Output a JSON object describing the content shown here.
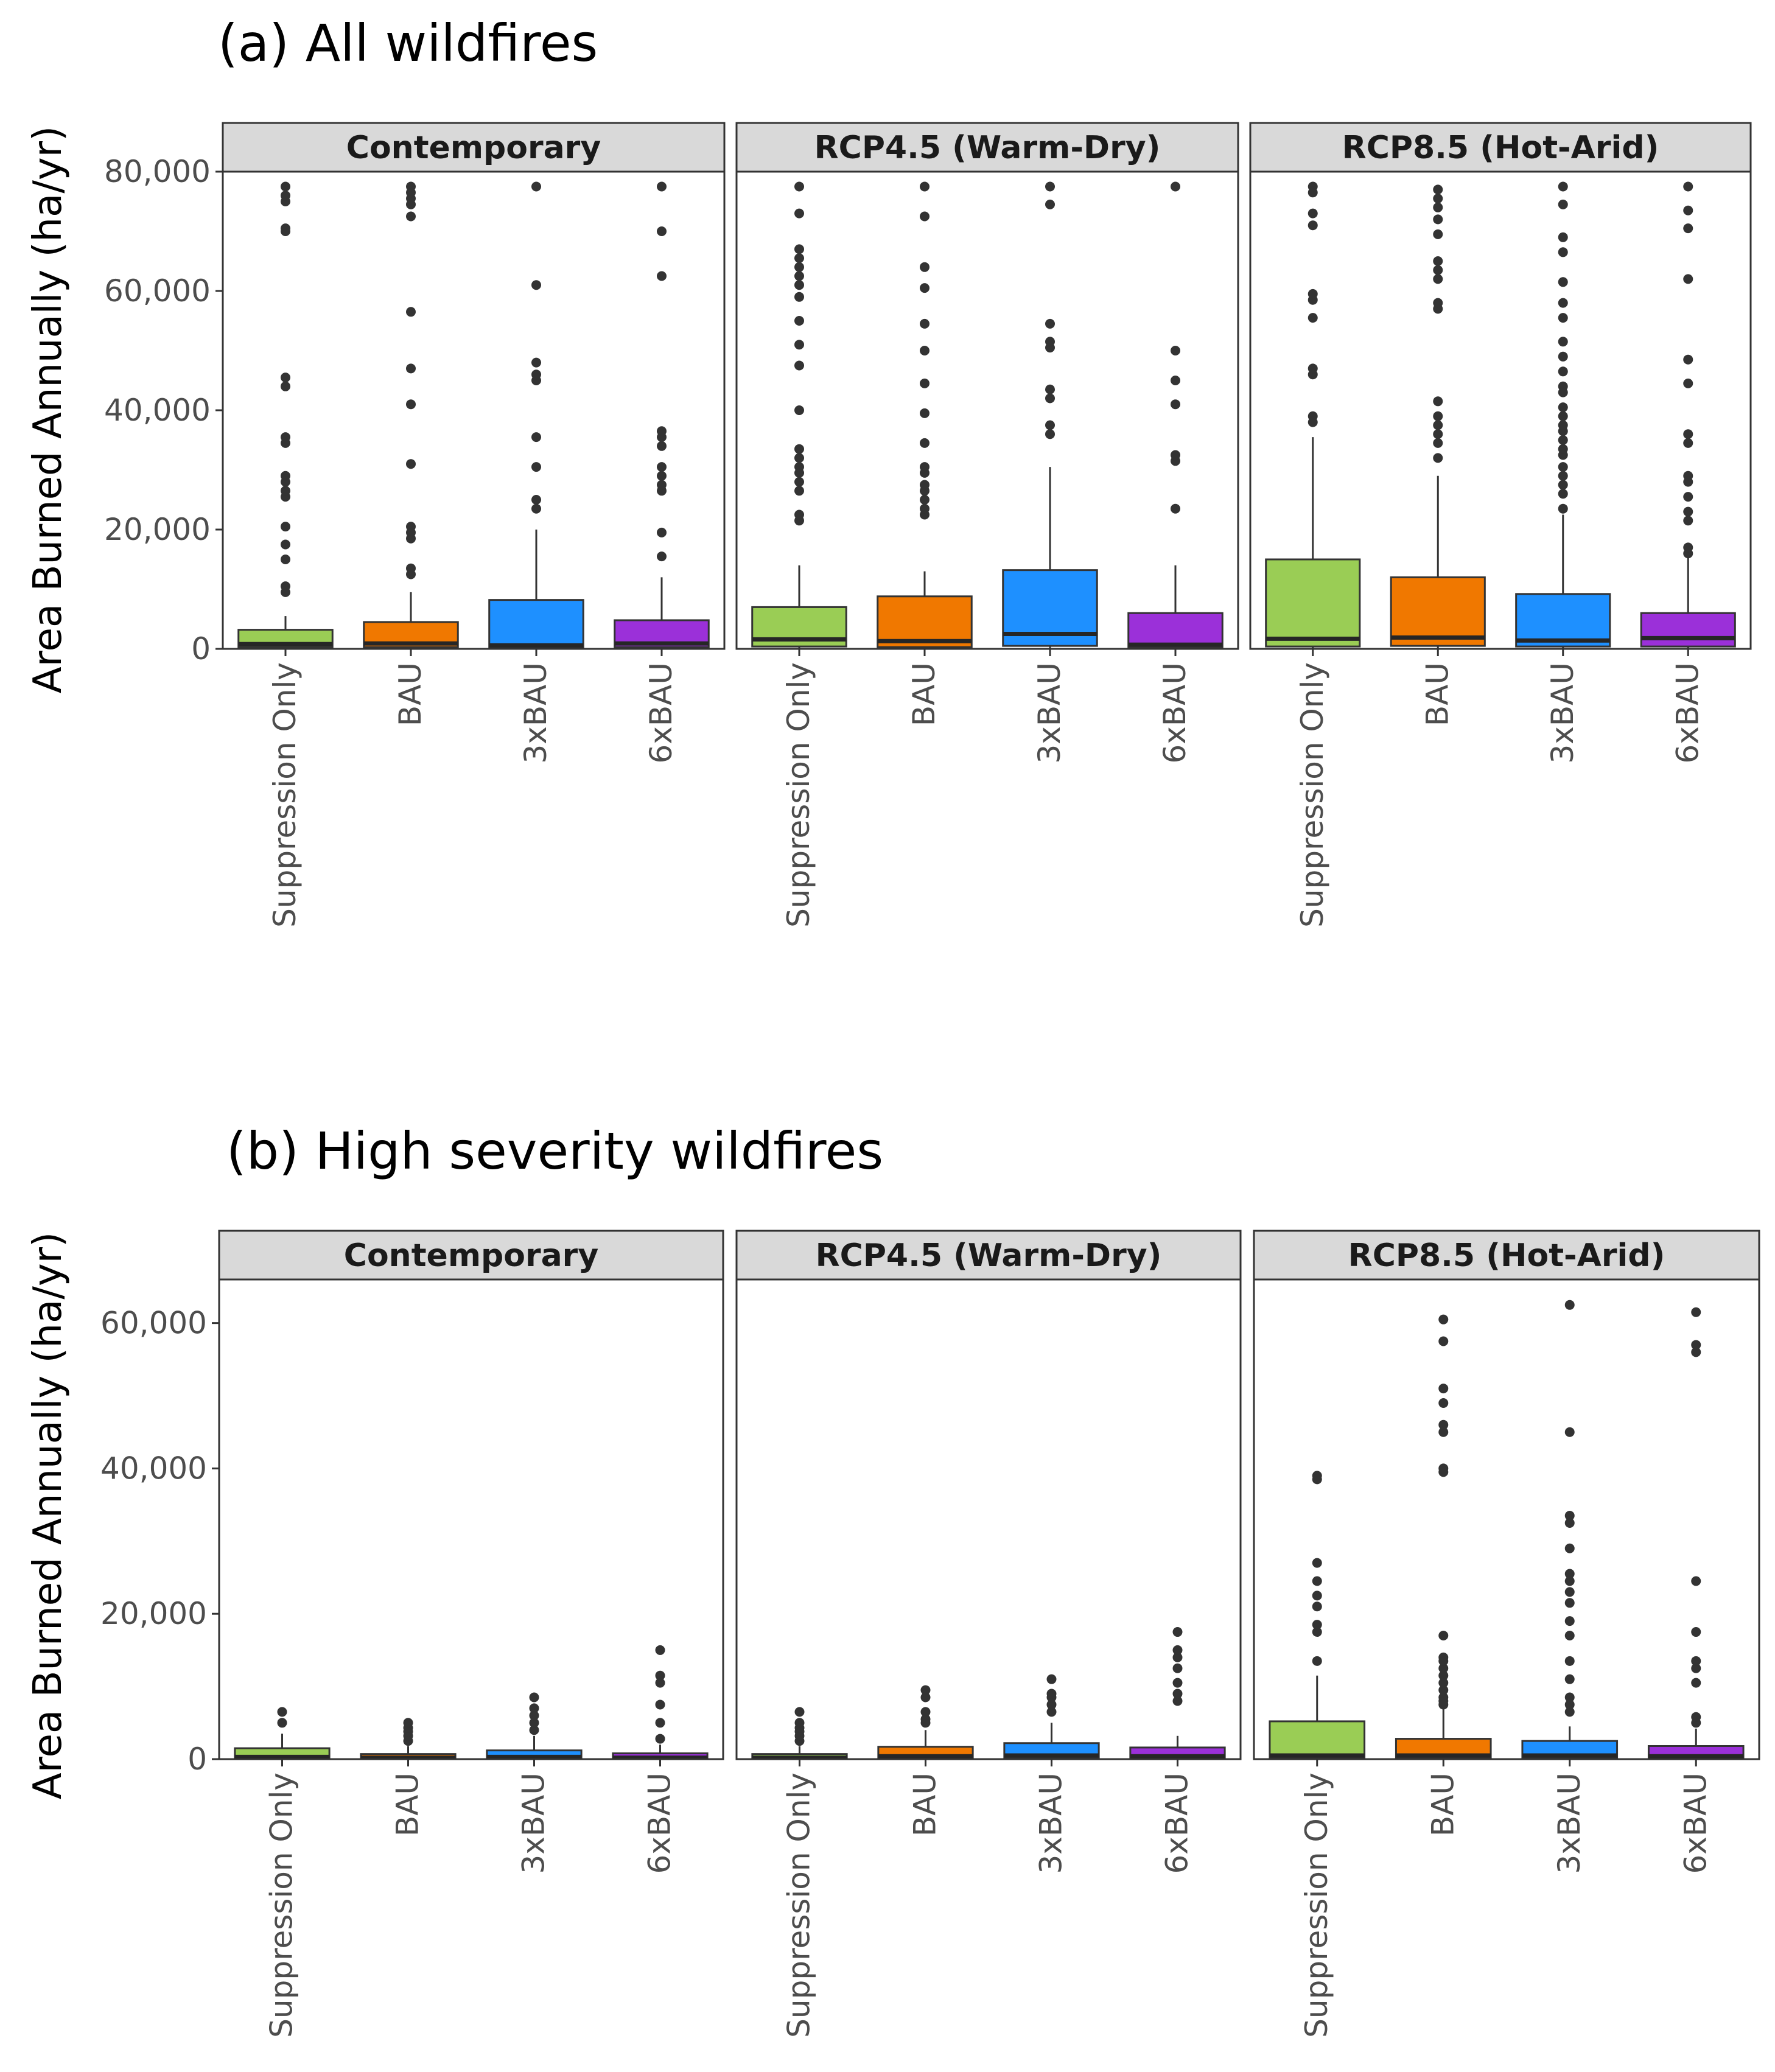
{
  "chart_data": [
    {
      "type": "box",
      "title": "(a) All wildfires",
      "ylabel": "Area Burned Annually (ha/yr)",
      "xlabel": "",
      "ylim": [
        0,
        80000
      ],
      "yticks": [
        0,
        20000,
        40000,
        60000,
        80000
      ],
      "ytick_labels": [
        "0",
        "20,000",
        "40,000",
        "60,000",
        "80,000"
      ],
      "grid": false,
      "categories": [
        "Suppression Only",
        "BAU",
        "3xBAU",
        "6xBAU"
      ],
      "colors": [
        "#9ACD55",
        "#F07800",
        "#1E90FF",
        "#9B30D9"
      ],
      "facets": [
        {
          "label": "Contemporary",
          "boxes": [
            {
              "q1": 300,
              "median": 800,
              "q3": 3200,
              "whisker_low": 0,
              "whisker_high": 5500,
              "outliers": [
                9500,
                10500,
                15000,
                17500,
                20500,
                25500,
                26500,
                28000,
                29000,
                34500,
                35500,
                44000,
                45500,
                70000,
                70500,
                75000,
                76000,
                77500
              ]
            },
            {
              "q1": 300,
              "median": 900,
              "q3": 4500,
              "whisker_low": 0,
              "whisker_high": 9500,
              "outliers": [
                12500,
                13500,
                18500,
                19500,
                20500,
                31000,
                41000,
                47000,
                56500,
                72500,
                74500,
                75500,
                76500,
                77500
              ]
            },
            {
              "q1": 200,
              "median": 600,
              "q3": 8200,
              "whisker_low": 0,
              "whisker_high": 20000,
              "outliers": [
                23500,
                25000,
                30500,
                35500,
                45000,
                46000,
                48000,
                61000,
                77500
              ]
            },
            {
              "q1": 300,
              "median": 900,
              "q3": 4800,
              "whisker_low": 0,
              "whisker_high": 12000,
              "outliers": [
                15500,
                19500,
                26500,
                27500,
                29000,
                30500,
                34000,
                35500,
                36500,
                62500,
                70000,
                77500
              ]
            }
          ]
        },
        {
          "label": "RCP4.5 (Warm-Dry)",
          "boxes": [
            {
              "q1": 400,
              "median": 1600,
              "q3": 7000,
              "whisker_low": 0,
              "whisker_high": 14000,
              "outliers": [
                21500,
                22500,
                26500,
                28000,
                29500,
                30500,
                32000,
                33500,
                40000,
                47500,
                51000,
                55000,
                59000,
                61000,
                62500,
                64000,
                65500,
                67000,
                73000,
                77500
              ]
            },
            {
              "q1": 300,
              "median": 1300,
              "q3": 8800,
              "whisker_low": 0,
              "whisker_high": 13000,
              "outliers": [
                22500,
                23500,
                25000,
                26500,
                27500,
                29500,
                30500,
                34500,
                39500,
                44500,
                50000,
                54500,
                60500,
                64000,
                72500,
                77500
              ]
            },
            {
              "q1": 500,
              "median": 2500,
              "q3": 13200,
              "whisker_low": 0,
              "whisker_high": 30500,
              "outliers": [
                36000,
                37500,
                42000,
                43500,
                50500,
                51500,
                54500,
                74500,
                77500
              ]
            },
            {
              "q1": 200,
              "median": 700,
              "q3": 6000,
              "whisker_low": 0,
              "whisker_high": 14000,
              "outliers": [
                23500,
                31500,
                32500,
                41000,
                45000,
                50000,
                77500
              ]
            }
          ]
        },
        {
          "label": "RCP8.5 (Hot-Arid)",
          "boxes": [
            {
              "q1": 400,
              "median": 1700,
              "q3": 15000,
              "whisker_low": 0,
              "whisker_high": 35500,
              "outliers": [
                38000,
                39000,
                46000,
                47000,
                55500,
                58500,
                59500,
                71000,
                73000,
                76500,
                77500
              ]
            },
            {
              "q1": 500,
              "median": 1900,
              "q3": 12000,
              "whisker_low": 0,
              "whisker_high": 29000,
              "outliers": [
                32000,
                34500,
                36000,
                37500,
                39000,
                41500,
                57000,
                58000,
                62000,
                63500,
                65000,
                69500,
                72000,
                74000,
                75500,
                77000
              ]
            },
            {
              "q1": 400,
              "median": 1400,
              "q3": 9200,
              "whisker_low": 0,
              "whisker_high": 22500,
              "outliers": [
                23500,
                26000,
                27500,
                29000,
                30500,
                32500,
                33500,
                35000,
                36500,
                37500,
                39000,
                40500,
                43000,
                44000,
                46500,
                49000,
                51500,
                55500,
                58000,
                61500,
                66500,
                69000,
                74500,
                77500
              ]
            },
            {
              "q1": 400,
              "median": 1800,
              "q3": 6000,
              "whisker_low": 0,
              "whisker_high": 15500,
              "outliers": [
                16000,
                17000,
                21500,
                23000,
                25500,
                28000,
                29000,
                34500,
                36000,
                44500,
                48500,
                62000,
                70500,
                73500,
                77500
              ]
            }
          ]
        }
      ]
    },
    {
      "type": "box",
      "title": "(b) High severity wildfires",
      "ylabel": "Area Burned Annually (ha/yr)",
      "xlabel": "",
      "ylim": [
        0,
        66000
      ],
      "yticks": [
        0,
        20000,
        40000,
        60000
      ],
      "ytick_labels": [
        "0",
        "20,000",
        "40,000",
        "60,000"
      ],
      "grid": false,
      "categories": [
        "Suppression Only",
        "BAU",
        "3xBAU",
        "6xBAU"
      ],
      "colors": [
        "#9ACD55",
        "#F07800",
        "#1E90FF",
        "#9B30D9"
      ],
      "facets": [
        {
          "label": "Contemporary",
          "boxes": [
            {
              "q1": 100,
              "median": 300,
              "q3": 1500,
              "whisker_low": 0,
              "whisker_high": 3500,
              "outliers": [
                5000,
                6500
              ]
            },
            {
              "q1": 50,
              "median": 200,
              "q3": 700,
              "whisker_low": 0,
              "whisker_high": 1800,
              "outliers": [
                2500,
                3200,
                3800,
                4300,
                5000
              ]
            },
            {
              "q1": 100,
              "median": 300,
              "q3": 1200,
              "whisker_low": 0,
              "whisker_high": 3200,
              "outliers": [
                4000,
                5000,
                6000,
                7000,
                8500
              ]
            },
            {
              "q1": 50,
              "median": 200,
              "q3": 800,
              "whisker_low": 0,
              "whisker_high": 2000,
              "outliers": [
                2800,
                5000,
                7500,
                10500,
                11500,
                15000
              ]
            }
          ]
        },
        {
          "label": "RCP4.5 (Warm-Dry)",
          "boxes": [
            {
              "q1": 50,
              "median": 200,
              "q3": 700,
              "whisker_low": 0,
              "whisker_high": 1800,
              "outliers": [
                2500,
                3200,
                3800,
                4300,
                5000,
                6500
              ]
            },
            {
              "q1": 100,
              "median": 400,
              "q3": 1700,
              "whisker_low": 0,
              "whisker_high": 4000,
              "outliers": [
                5000,
                5500,
                6500,
                8500,
                9500
              ]
            },
            {
              "q1": 200,
              "median": 500,
              "q3": 2200,
              "whisker_low": 0,
              "whisker_high": 5000,
              "outliers": [
                6500,
                7500,
                8500,
                9000,
                11000
              ]
            },
            {
              "q1": 100,
              "median": 400,
              "q3": 1600,
              "whisker_low": 0,
              "whisker_high": 3200,
              "outliers": [
                8000,
                9000,
                10500,
                12500,
                14000,
                15000,
                17500
              ]
            }
          ]
        },
        {
          "label": "RCP8.5 (Hot-Arid)",
          "boxes": [
            {
              "q1": 200,
              "median": 500,
              "q3": 5200,
              "whisker_low": 0,
              "whisker_high": 11500,
              "outliers": [
                13500,
                17500,
                18500,
                21000,
                22500,
                24500,
                27000,
                38500,
                39000
              ]
            },
            {
              "q1": 200,
              "median": 500,
              "q3": 2800,
              "whisker_low": 0,
              "whisker_high": 7000,
              "outliers": [
                7500,
                8000,
                8500,
                9500,
                10500,
                11500,
                12500,
                13500,
                14000,
                17000,
                39500,
                40000,
                45000,
                46000,
                49000,
                51000,
                57500,
                60500
              ]
            },
            {
              "q1": 200,
              "median": 500,
              "q3": 2500,
              "whisker_low": 0,
              "whisker_high": 4500,
              "outliers": [
                6500,
                7500,
                8500,
                11000,
                13500,
                17000,
                19000,
                21500,
                23000,
                24500,
                25500,
                29000,
                32500,
                33500,
                45000,
                62500
              ]
            },
            {
              "q1": 100,
              "median": 400,
              "q3": 1800,
              "whisker_low": 0,
              "whisker_high": 4200,
              "outliers": [
                5000,
                5800,
                10500,
                12500,
                13500,
                17500,
                24500,
                56000,
                57000,
                61500
              ]
            }
          ]
        }
      ]
    }
  ]
}
